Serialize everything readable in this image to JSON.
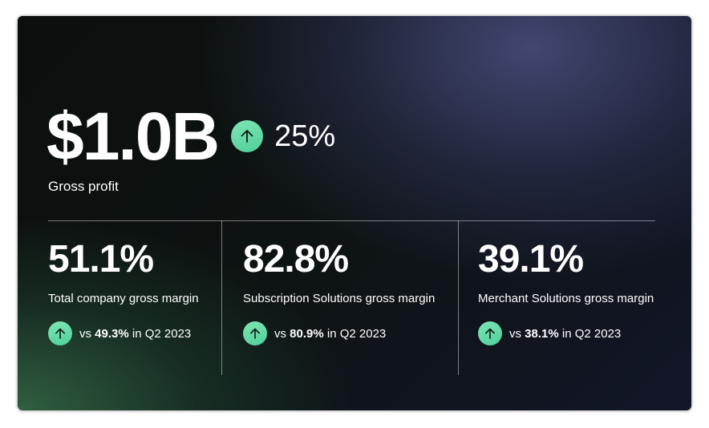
{
  "headline": {
    "value": "$1.0B",
    "change": "25%",
    "label": "Gross profit"
  },
  "metrics": [
    {
      "value": "51.1%",
      "label": "Total company gross margin",
      "compare_prefix": "vs ",
      "compare_value": "49.3%",
      "compare_suffix": " in Q2 2023"
    },
    {
      "value": "82.8%",
      "label": "Subscription Solutions gross margin",
      "compare_prefix": "vs ",
      "compare_value": "80.9%",
      "compare_suffix": " in Q2 2023"
    },
    {
      "value": "39.1%",
      "label": "Merchant Solutions gross margin",
      "compare_prefix": "vs ",
      "compare_value": "38.1%",
      "compare_suffix": " in Q2 2023"
    }
  ],
  "colors": {
    "accent_up": "#5fd9a4",
    "text": "#ffffff"
  },
  "icons": {
    "trend": "arrow-up-icon"
  }
}
